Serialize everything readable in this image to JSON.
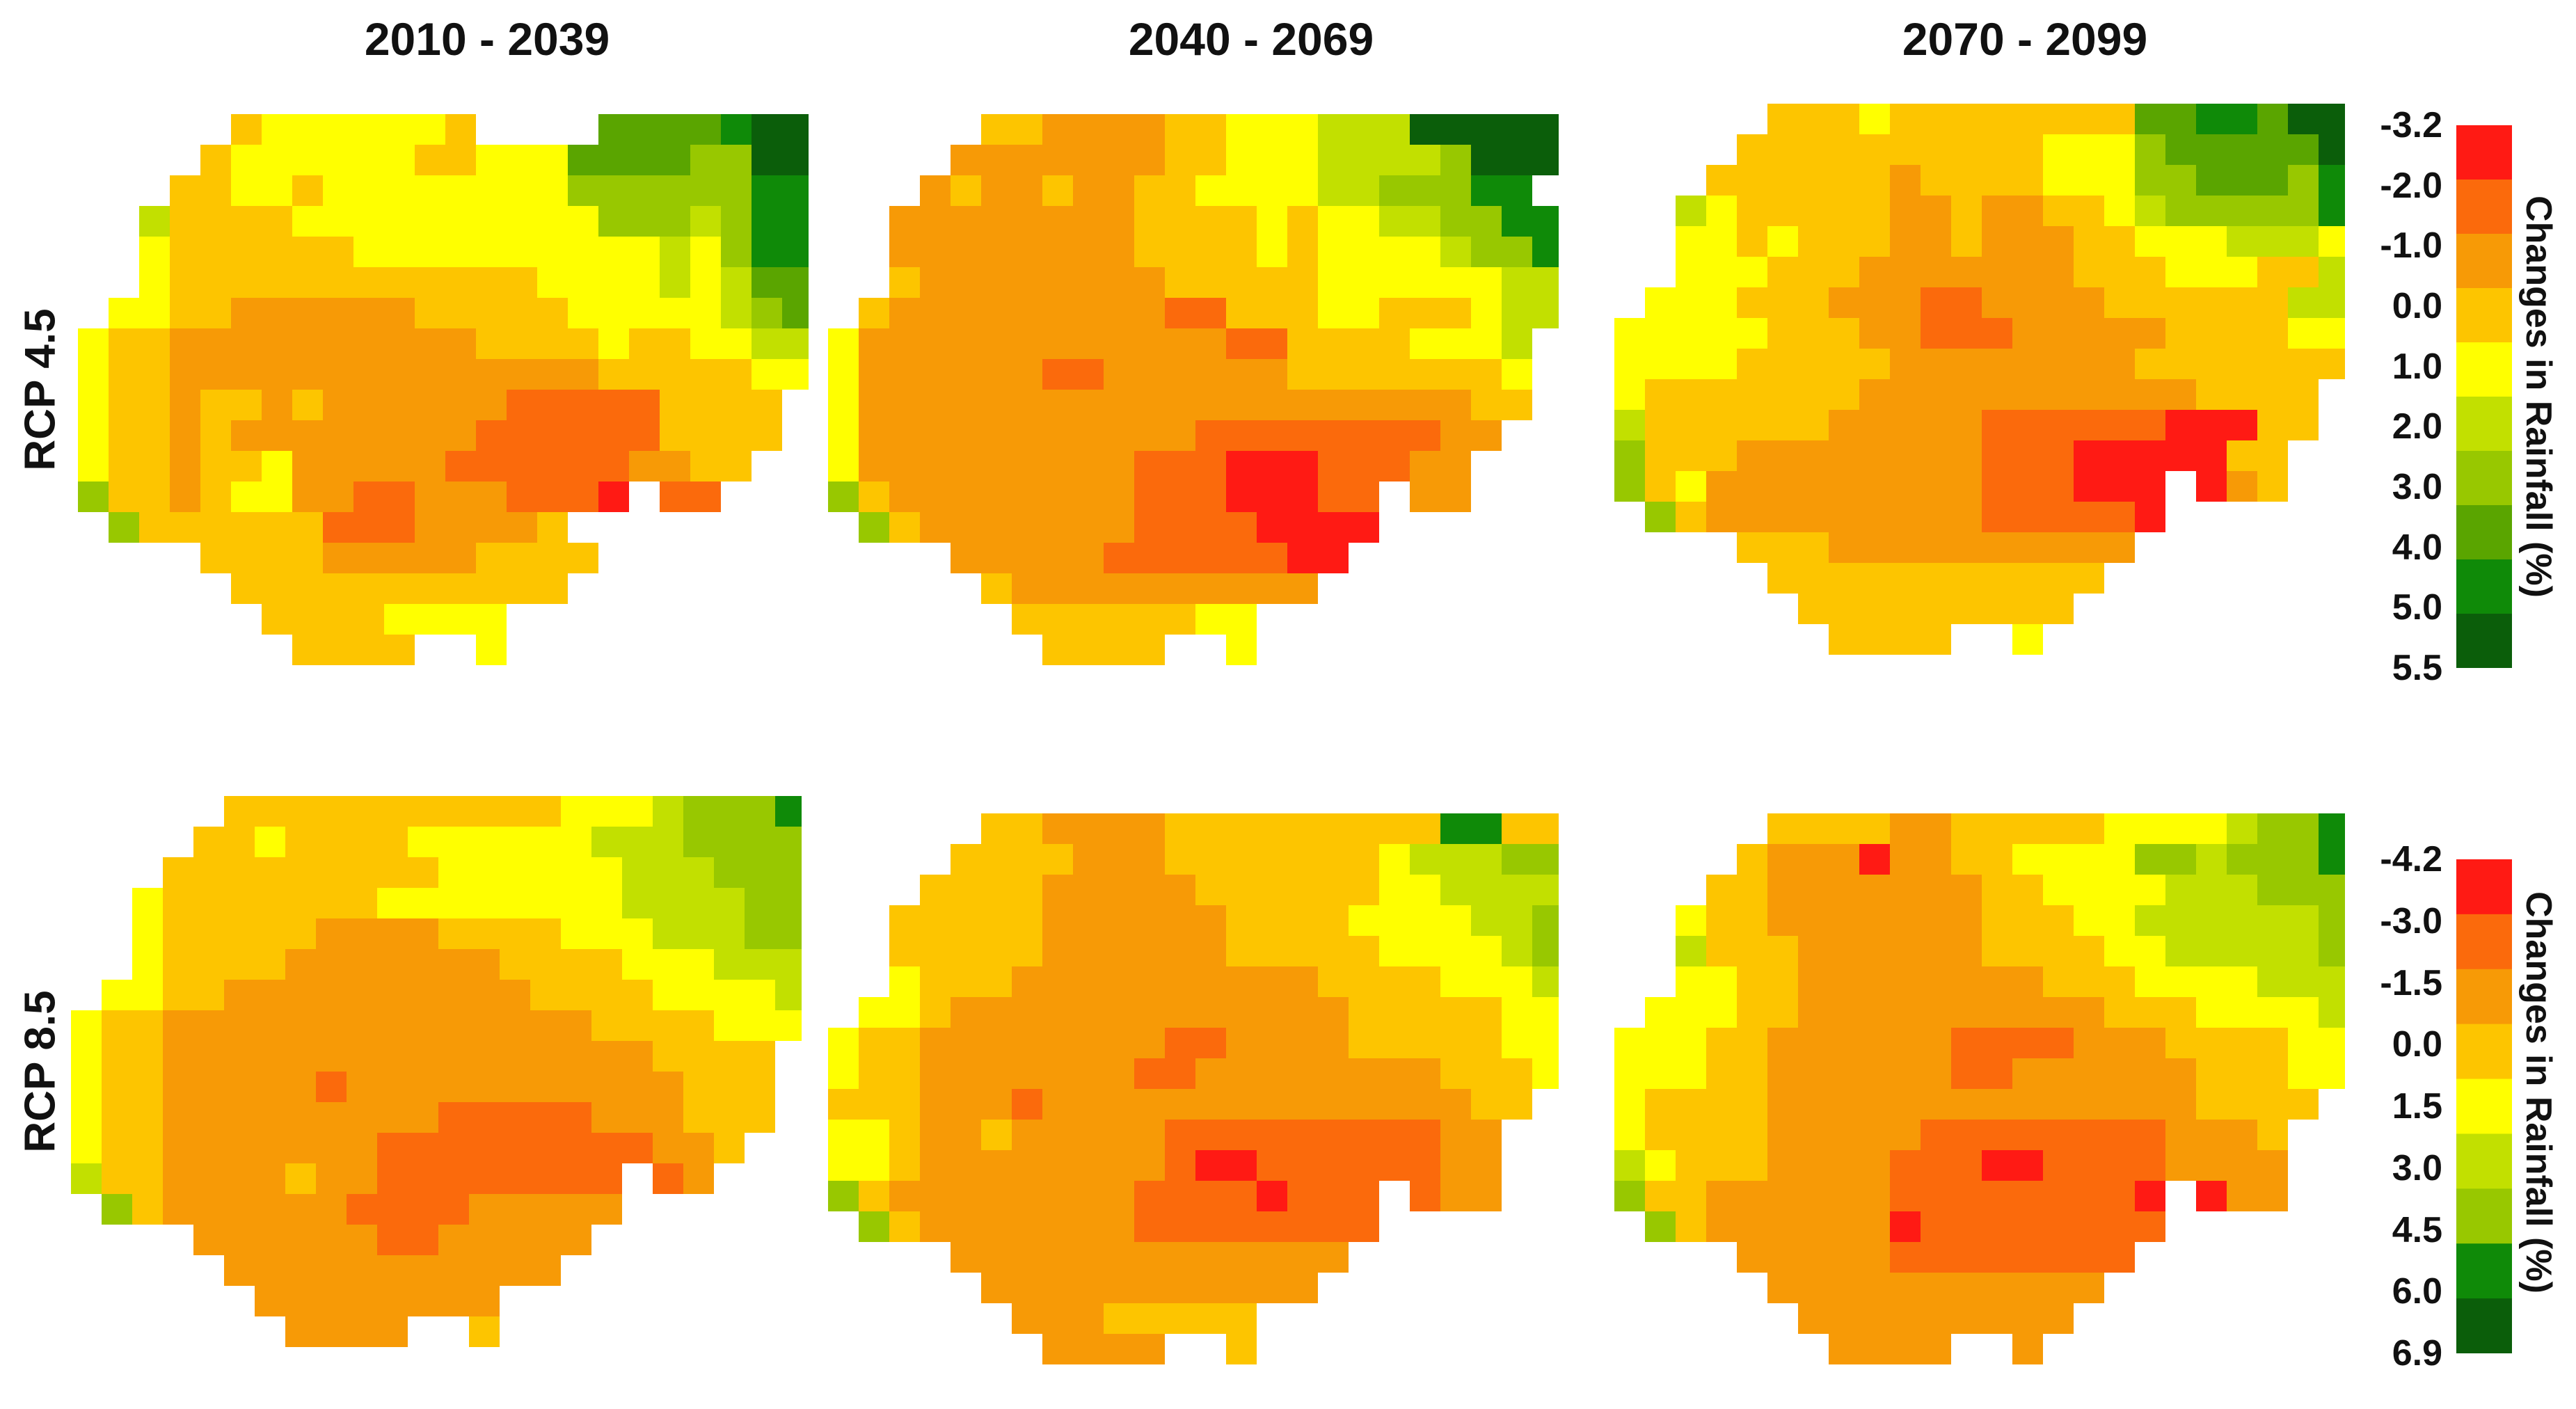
{
  "columns": [
    "2010 - 2039",
    "2040 - 2069",
    "2070 - 2099"
  ],
  "rows": [
    "RCP 4.5",
    "RCP 8.5"
  ],
  "legends": [
    {
      "title": "Changes in Rainfall (%)",
      "ticks": [
        "-3.2",
        "-2.0",
        "-1.0",
        "0.0",
        "1.0",
        "2.0",
        "3.0",
        "4.0",
        "5.0",
        "5.5"
      ],
      "colors": [
        "#ff1a14",
        "#fb6a0c",
        "#f79a06",
        "#fdc500",
        "#ffff00",
        "#c2e000",
        "#98c800",
        "#5aa500",
        "#0f8a08",
        "#0b5e0a"
      ]
    },
    {
      "title": "Changes in Rainfall (%)",
      "ticks": [
        "-4.2",
        "-3.0",
        "-1.5",
        "0.0",
        "1.5",
        "3.0",
        "4.5",
        "6.0",
        "6.9"
      ],
      "colors": [
        "#ff1a14",
        "#fb6a0c",
        "#f79a06",
        "#fdc500",
        "#ffff00",
        "#c2e000",
        "#98c800",
        "#0f8a08",
        "#0b5e0a"
      ]
    }
  ],
  "map_data": {
    "shape": [
      "..........................",
      ".....XXXXXXXXXXXXXXXXXXXXXX",
      "....XXXXXXXXXXXXXXXXXXXXXXX",
      "...XXXXXXXXXXXXXXXXXXXXXXX.",
      "..XXXXXXXXXXXXXXXXXXXXXXXX.",
      "..XXXXXXXXXXXXXXXXXXXXXXXX.",
      "..XXXXXXXXXXXXXXXXXXXXXXX..",
      ".XXXXXXXXXXXXXXXXXXXXXXXX..",
      "XXXXXXXXXXXXXXXXXXXXXXXXX..",
      "XXXXXXXXXXXXXXXXXXXXXXXX...",
      "XXXXXXXXXXXXXXXXXXXXXXX....",
      "XXXXXXXXXXXXXXXXXXXXXXX....",
      "XXXXXXXXXXXXXXXXXXXXXX.....",
      "XXXXXXXXXXXXXXXXXX.XXX.....",
      ".XXXXXXXXXXXXXXXXX.........",
      "....XXXXXXXXXXXXX..........",
      ".....XXXXXXXXXXX...........",
      "......XXXXXXXXX............",
      ".......XXXX..X............."
    ],
    "panels": [
      {
        "legend": 0,
        "classes": [
          "..........................",
          ".....34444443....77778999.",
          "....344444433444777766998.",
          "...3344344444444666666888.",
          "..53333444444444466656888.",
          "..43333334444444444546888.",
          "..43333333333334444545777.",
          ".44332222223333344444567..",
          "433222222222233334334455..",
          "4332222222222222233333444.",
          "433233232222221111133333..",
          "433232222222211111133333..",
          "433233422222111111223333..",
          "633234422112221110011.....",
          ".633333311122223..........",
          "....3333222223333.........",
          ".....33333333333..........",
          "......33334444............",
          ".......3333..4............"
        ]
      },
      {
        "legend": 0,
        "classes": [
          "..........................",
          ".....3322223344455599999.",
          "....22222223344455556999.",
          "...23223223344445566688..",
          "..22222222333343445566888",
          "..22222222333343444456688",
          "..32222222233333444444555",
          ".32222222221133344333455.",
          "42222222222221133334445..",
          "42222221122222233333334..",
          "422222222222222222222333.",
          "4222222222221111111122...",
          "422222222211100011122....",
          "632222222211100011122....",
          ".63222222211110000112....",
          "....22222111111001.......",
          ".....32222222222.........",
          "......33333344...........",
          ".......3333..4..........."
        ]
      },
      {
        "legend": 0,
        "classes": [
          "..........................",
          "....33334333333337788799.",
          "...3333333333344467777798.",
          "..33333332333344466777688.",
          "..54333332232233456666686.",
          "..44343332232223344455545.",
          "..44433322222223334443355.",
          ".44433322211222233333355..",
          "4444433322111222223333444.",
          "4444333332222222233333334.",
          "433333332222222222233333..",
          "5333333222221111110003333.",
          "6333222222221110000033....",
          "6342222222221110000023....",
          ".63222222222111110001.....",
          "....3332222222222222......",
          ".....33333333333333.......",
          "......33333333333.........",
          ".......3333..4............"
        ]
      },
      {
        "legend": 1,
        "classes": [
          "..........................",
          ".....33333333333444566677.",
          "....334333344444455566667.",
          "...33333333344444455566666",
          "..43333333444444445555666.",
          "..43333322223333444555666.",
          "..43333222222233334445555.",
          ".44332222222222333344445..",
          "433222222222222223333444..",
          "43322222222222222223333...",
          "433222221222222222223333..",
          "43322222222211111222333...",
          "43322222221111111112232...",
          "533222232211111111112.....",
          ".63222222111122222........",
          "....2222221122222.........",
          ".....22222222222..........",
          "......22222222............",
          ".......2222..3............"
        ]
      },
      {
        "legend": 1,
        "classes": [
          "..........................",
          ".....3322223333333337733.",
          "....33332223333333455566..",
          "...3333222223333334455557.",
          "..33333222222333344445567.",
          "..33333222222333334444567.",
          "..43332222222222333344455.",
          ".4432222222222222333334455",
          "4332222222211222233333444.",
          "4332222222112222222233344.",
          "333222122222222222222333..",
          "4432232222211111111122....",
          "4432222222210011111122....",
          "6322222222111101111122....",
          ".6322222221111111111......",
          "....222222222222222.......",
          ".....222222222222.........",
          "......22233333............",
          ".......2222..3............"
        ]
      },
      {
        "legend": 1,
        "classes": [
          "..........................",
          ".....33332233333444456677.",
          "....322202233444466566678.",
          "...33222222233444455566667.",
          "..43322222223334455555566.",
          "..53332222223333445555566.",
          "..44332222222233344445556.",
          ".44433222222222233344445..",
          "4443322222211112223333444.",
          "444332222221122222233344..",
          "433332222222222222233333..",
          "4333322222111111112223....",
          "5433322221110011112222....",
          "6332222221111111100022....",
          ".63222222011111111012.....",
          "....22222111111111........",
          ".....22222222222..........",
          "......222222222...........",
          ".......2222..2............"
        ]
      }
    ]
  }
}
